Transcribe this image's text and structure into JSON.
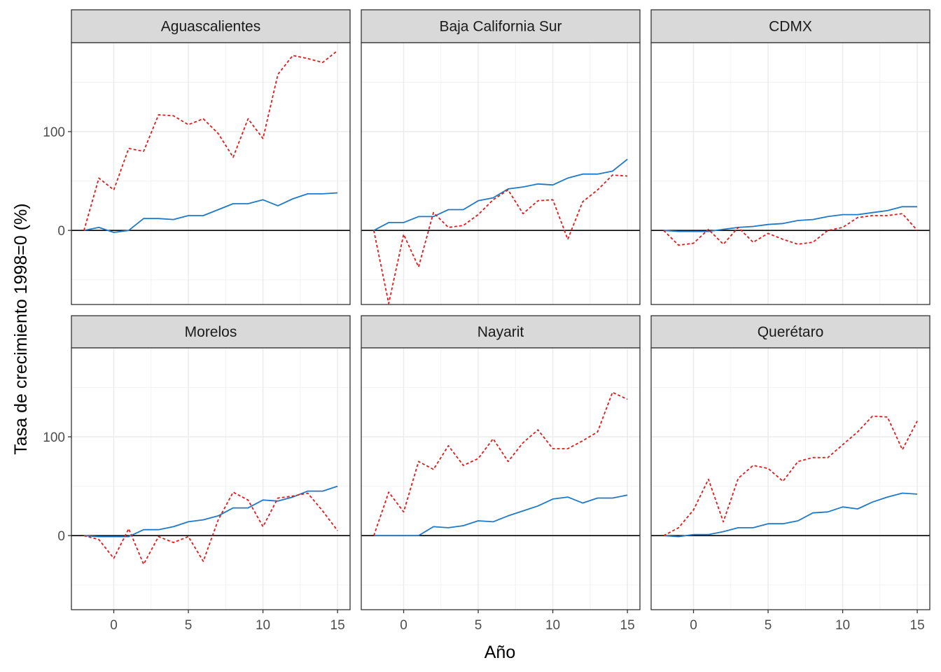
{
  "chart_data": {
    "type": "line",
    "facet_layout": "3 columns x 2 rows",
    "xlabel": "Año",
    "ylabel": "Tasa de crecimiento 1998=0 (%)",
    "xlim": [
      -2,
      15
    ],
    "ylim": [
      -75,
      190
    ],
    "x_ticks": [
      0,
      5,
      10,
      15
    ],
    "y_ticks": [
      0,
      100
    ],
    "grid": true,
    "reference_line_y": 0,
    "series_styles": [
      {
        "style": "solid",
        "color": "#1f78c8"
      },
      {
        "style": "dashed",
        "color": "#e31a1c"
      }
    ],
    "x": [
      -2,
      -1,
      0,
      1,
      2,
      3,
      4,
      5,
      6,
      7,
      8,
      9,
      10,
      11,
      12,
      13,
      14,
      15
    ],
    "facets": [
      {
        "title": "Aguascalientes",
        "solid": [
          0,
          3,
          -2,
          0,
          12,
          12,
          11,
          15,
          15,
          21,
          27,
          27,
          31,
          25,
          32,
          37,
          37,
          38
        ],
        "dashed": [
          0,
          53,
          41,
          83,
          80,
          117,
          116,
          107,
          113,
          98,
          74,
          113,
          93,
          158,
          177,
          174,
          170,
          182
        ]
      },
      {
        "title": "Baja California Sur",
        "solid": [
          0,
          8,
          8,
          14,
          14,
          21,
          21,
          30,
          33,
          42,
          44,
          47,
          46,
          53,
          57,
          57,
          60,
          72
        ],
        "dashed": [
          0,
          -74,
          -4,
          -37,
          18,
          3,
          5,
          16,
          31,
          41,
          17,
          30,
          31,
          -9,
          29,
          41,
          56,
          55
        ]
      },
      {
        "title": "CDMX",
        "solid": [
          0,
          -1,
          -1,
          -1,
          1,
          3,
          4,
          6,
          7,
          10,
          11,
          14,
          16,
          16,
          18,
          20,
          24,
          24
        ],
        "dashed": [
          0,
          -15,
          -13,
          1,
          -14,
          3,
          -12,
          -3,
          -9,
          -14,
          -12,
          0,
          3,
          13,
          15,
          15,
          17,
          0
        ]
      },
      {
        "title": "Morelos",
        "solid": [
          0,
          -1,
          -1,
          -1,
          6,
          6,
          9,
          14,
          16,
          20,
          28,
          28,
          36,
          35,
          39,
          45,
          45,
          50
        ],
        "dashed": [
          0,
          -4,
          -23,
          7,
          -29,
          -1,
          -7,
          -1,
          -26,
          16,
          44,
          36,
          9,
          38,
          40,
          43,
          25,
          5
        ]
      },
      {
        "title": "Nayarit",
        "solid": [
          0,
          0,
          0,
          0,
          9,
          8,
          10,
          15,
          14,
          20,
          25,
          30,
          37,
          39,
          33,
          38,
          38,
          41
        ],
        "dashed": [
          0,
          44,
          24,
          75,
          67,
          91,
          71,
          78,
          98,
          75,
          94,
          107,
          88,
          88,
          96,
          105,
          145,
          138
        ]
      },
      {
        "title": "Querétaro",
        "solid": [
          0,
          -1,
          1,
          1,
          4,
          8,
          8,
          12,
          12,
          15,
          23,
          24,
          29,
          27,
          34,
          39,
          43,
          42
        ],
        "dashed": [
          0,
          8,
          26,
          57,
          14,
          58,
          71,
          68,
          55,
          75,
          79,
          79,
          92,
          105,
          121,
          120,
          87,
          116
        ]
      }
    ]
  }
}
